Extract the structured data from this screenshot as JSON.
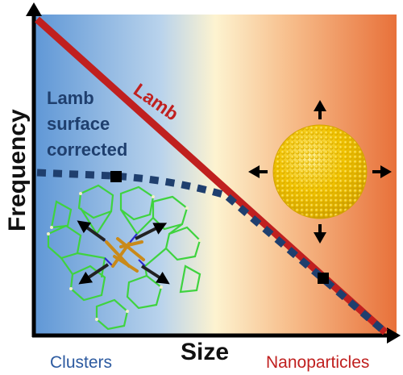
{
  "axes": {
    "y_label": "Frequency",
    "x_label": "Size"
  },
  "regions": {
    "left": "Clusters",
    "right": "Nanoparticles"
  },
  "curves": {
    "lamb": "Lamb",
    "corrected_line1": "Lamb",
    "corrected_line2": "surface",
    "corrected_line3": "corrected"
  },
  "colors": {
    "lamb_line": "#c0201f",
    "corrected_line": "#1f3f6e",
    "clusters_text": "#2c5aa0",
    "nanoparticles_text": "#c0201f",
    "gradient_left": "#6fa0d8",
    "gradient_mid": "#fdf3d0",
    "gradient_right": "#e8713a",
    "nanoparticle": "#f2c400"
  },
  "icons": {
    "cluster_image": "molecular-cluster-icon",
    "nanoparticle_image": "gold-nanoparticle-sphere-icon"
  }
}
